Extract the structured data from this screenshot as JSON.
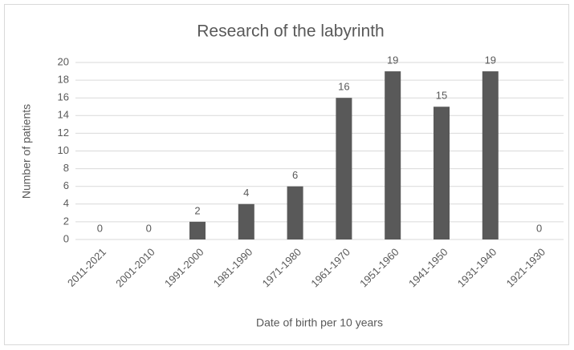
{
  "chart_data": {
    "type": "bar",
    "title": "Research of the labyrinth",
    "x_label": "Date of birth per 10 years",
    "y_label": "Number of patients",
    "categories": [
      "2011-2021",
      "2001-2010",
      "1991-2000",
      "1981-1990",
      "1971-1980",
      "1961-1970",
      "1951-1960",
      "1941-1950",
      "1931-1940",
      "1921-1930"
    ],
    "values": [
      0,
      0,
      2,
      4,
      6,
      16,
      19,
      15,
      19,
      0
    ],
    "color": "#595959",
    "ylim": [
      0,
      20
    ],
    "yticks": [
      0,
      2,
      4,
      6,
      8,
      10,
      12,
      14,
      16,
      18,
      20
    ],
    "grid": true,
    "data_labels": true
  }
}
